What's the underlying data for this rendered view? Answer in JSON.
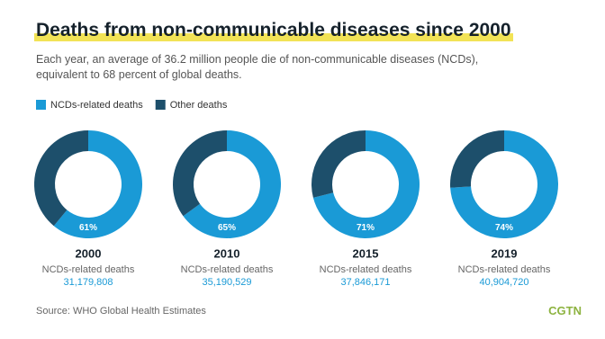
{
  "header": {
    "title": "Deaths from non-communicable diseases since 2000",
    "subtitle": "Each year, an average of 36.2 million people die of non-communicable diseases (NCDs), equivalent to 68 percent of global deaths."
  },
  "legend": [
    {
      "name": "NCDs-related deaths",
      "color": "#1a9ad6"
    },
    {
      "name": "Other deaths",
      "color": "#1d4f6b"
    }
  ],
  "chart_data": [
    {
      "type": "pie",
      "title": "2000",
      "categories": [
        "NCDs-related deaths",
        "Other deaths"
      ],
      "values": [
        61,
        39
      ],
      "value_labels": [
        "61%",
        null
      ],
      "annotation": "NCDs-related deaths",
      "deaths": {
        "value": 31179808,
        "label": "31,179,808"
      }
    },
    {
      "type": "pie",
      "title": "2010",
      "categories": [
        "NCDs-related deaths",
        "Other deaths"
      ],
      "values": [
        65,
        35
      ],
      "value_labels": [
        "65%",
        null
      ],
      "annotation": "NCDs-related deaths",
      "deaths": {
        "value": 35190529,
        "label": "35,190,529"
      }
    },
    {
      "type": "pie",
      "title": "2015",
      "categories": [
        "NCDs-related deaths",
        "Other deaths"
      ],
      "values": [
        71,
        29
      ],
      "value_labels": [
        "71%",
        null
      ],
      "annotation": "NCDs-related deaths",
      "deaths": {
        "value": 37846171,
        "label": "37,846,171"
      }
    },
    {
      "type": "pie",
      "title": "2019",
      "categories": [
        "NCDs-related deaths",
        "Other deaths"
      ],
      "values": [
        74,
        26
      ],
      "value_labels": [
        "74%",
        null
      ],
      "annotation": "NCDs-related deaths",
      "deaths": {
        "value": 40904720,
        "label": "40,904,720"
      }
    }
  ],
  "footer": {
    "source": "Source: WHO Global Health Estimates",
    "logo": "CGTN"
  }
}
